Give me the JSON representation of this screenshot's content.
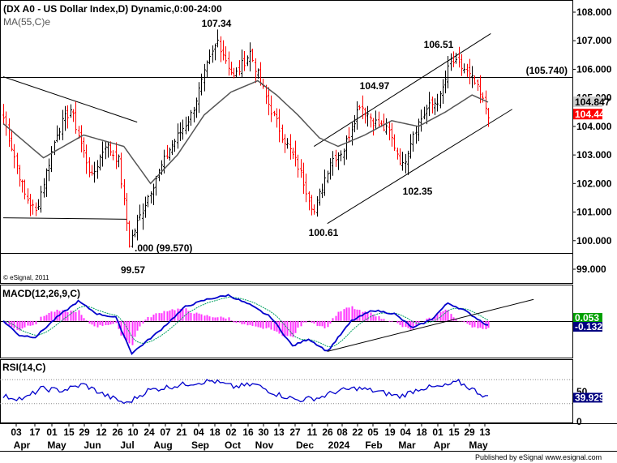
{
  "chart_data": [
    {
      "type": "candlestick",
      "title": "(DX A0 - US Dollar Index,D) Dynamic,0:00-24:00",
      "indicator_label": "MA(55,C)e",
      "ylim": [
        99.0,
        108.0
      ],
      "y_ticks": [
        "108.000",
        "107.000",
        "106.000",
        "105.000",
        "104.000",
        "103.000",
        "102.000",
        "101.000",
        "100.000",
        "99.000"
      ],
      "price_tags": [
        {
          "value": "104.847",
          "color": "#ffffff",
          "bg": "#d0d0d0",
          "text_color": "#000000"
        },
        {
          "value": "104.445",
          "color": "#ff0000",
          "bg": "#ff0000",
          "text_color": "#ffffff"
        }
      ],
      "annotations": [
        {
          "label": "107.34",
          "value": 107.34
        },
        {
          "label": "106.51",
          "value": 106.51
        },
        {
          "label": "104.97",
          "value": 104.97
        },
        {
          "label": "102.35",
          "value": 102.35
        },
        {
          "label": "100.61",
          "value": 100.61
        },
        {
          "label": "99.57",
          "value": 99.57
        },
        {
          "label": "(105.740)",
          "value": 105.74
        },
        {
          "label": ".000 (99.570)",
          "value": 99.57
        }
      ],
      "levels": [
        105.74,
        99.57
      ],
      "copyright": "© eSignal, 2011",
      "anchors": [
        {
          "i": 0,
          "c": 104.3
        },
        {
          "i": 8,
          "c": 101.6
        },
        {
          "i": 12,
          "c": 101.0
        },
        {
          "i": 20,
          "c": 103.8
        },
        {
          "i": 25,
          "c": 104.6
        },
        {
          "i": 33,
          "c": 102.2
        },
        {
          "i": 38,
          "c": 103.4
        },
        {
          "i": 43,
          "c": 102.8
        },
        {
          "i": 47,
          "c": 99.9
        },
        {
          "i": 55,
          "c": 101.8
        },
        {
          "i": 62,
          "c": 103.2
        },
        {
          "i": 70,
          "c": 104.4
        },
        {
          "i": 76,
          "c": 106.1
        },
        {
          "i": 80,
          "c": 107.0
        },
        {
          "i": 86,
          "c": 105.7
        },
        {
          "i": 92,
          "c": 106.6
        },
        {
          "i": 98,
          "c": 105.0
        },
        {
          "i": 104,
          "c": 103.7
        },
        {
          "i": 110,
          "c": 102.6
        },
        {
          "i": 116,
          "c": 101.0
        },
        {
          "i": 122,
          "c": 102.8
        },
        {
          "i": 127,
          "c": 103.2
        },
        {
          "i": 133,
          "c": 104.8
        },
        {
          "i": 138,
          "c": 104.2
        },
        {
          "i": 144,
          "c": 103.8
        },
        {
          "i": 149,
          "c": 102.6
        },
        {
          "i": 153,
          "c": 103.8
        },
        {
          "i": 158,
          "c": 104.6
        },
        {
          "i": 163,
          "c": 105.0
        },
        {
          "i": 167,
          "c": 106.3
        },
        {
          "i": 172,
          "c": 106.0
        },
        {
          "i": 176,
          "c": 105.5
        },
        {
          "i": 181,
          "c": 104.45
        }
      ],
      "ma_anchors": [
        {
          "i": 0,
          "c": 104.1
        },
        {
          "i": 15,
          "c": 102.9
        },
        {
          "i": 30,
          "c": 103.7
        },
        {
          "i": 45,
          "c": 103.3
        },
        {
          "i": 55,
          "c": 102.0
        },
        {
          "i": 65,
          "c": 103.0
        },
        {
          "i": 75,
          "c": 104.4
        },
        {
          "i": 85,
          "c": 105.2
        },
        {
          "i": 95,
          "c": 105.6
        },
        {
          "i": 102,
          "c": 105.1
        },
        {
          "i": 110,
          "c": 104.4
        },
        {
          "i": 118,
          "c": 103.6
        },
        {
          "i": 125,
          "c": 103.3
        },
        {
          "i": 135,
          "c": 103.7
        },
        {
          "i": 145,
          "c": 104.2
        },
        {
          "i": 155,
          "c": 104.0
        },
        {
          "i": 165,
          "c": 104.5
        },
        {
          "i": 175,
          "c": 105.1
        },
        {
          "i": 181,
          "c": 104.85
        }
      ],
      "trendlines": [
        {
          "from": {
            "i": 0,
            "y": 105.74
          },
          "to": {
            "i": 50,
            "y": 104.15
          }
        },
        {
          "from": {
            "i": 0,
            "y": 100.8
          },
          "to": {
            "i": 46,
            "y": 100.75
          }
        },
        {
          "from": {
            "i": 116,
            "y": 103.3
          },
          "to": {
            "i": 182,
            "y": 107.25
          }
        },
        {
          "from": {
            "i": 121,
            "y": 100.6
          },
          "to": {
            "i": 190,
            "y": 104.6
          }
        }
      ]
    },
    {
      "type": "line",
      "title": "MACD(12,26,9,C)",
      "y_ticks": [],
      "price_tags": [
        {
          "value": "0.053",
          "bg": "#00a000",
          "text_color": "#ffffff"
        },
        {
          "value": "-0.132",
          "bg": "#000080",
          "text_color": "#ffffff"
        }
      ],
      "series": [
        {
          "name": "MACD",
          "color": "#0000cc"
        },
        {
          "name": "Signal",
          "color": "#00a060"
        },
        {
          "name": "Histogram",
          "color": "#ff33ff"
        }
      ],
      "macd_anchors": [
        {
          "i": 0,
          "c": 0.0
        },
        {
          "i": 6,
          "c": -0.4
        },
        {
          "i": 12,
          "c": -0.45
        },
        {
          "i": 20,
          "c": 0.1
        },
        {
          "i": 28,
          "c": 0.55
        },
        {
          "i": 35,
          "c": 0.2
        },
        {
          "i": 42,
          "c": 0.1
        },
        {
          "i": 48,
          "c": -0.9
        },
        {
          "i": 58,
          "c": -0.3
        },
        {
          "i": 68,
          "c": 0.4
        },
        {
          "i": 76,
          "c": 0.6
        },
        {
          "i": 84,
          "c": 0.72
        },
        {
          "i": 92,
          "c": 0.45
        },
        {
          "i": 100,
          "c": 0.1
        },
        {
          "i": 108,
          "c": -0.7
        },
        {
          "i": 114,
          "c": -0.5
        },
        {
          "i": 121,
          "c": -0.85
        },
        {
          "i": 130,
          "c": 0.0
        },
        {
          "i": 138,
          "c": 0.3
        },
        {
          "i": 146,
          "c": 0.2
        },
        {
          "i": 153,
          "c": -0.2
        },
        {
          "i": 160,
          "c": 0.05
        },
        {
          "i": 166,
          "c": 0.5
        },
        {
          "i": 172,
          "c": 0.3
        },
        {
          "i": 181,
          "c": -0.13
        }
      ],
      "trendline": {
        "from": {
          "i": 121,
          "y": -0.85
        },
        "to": {
          "i": 198,
          "y": 0.6
        }
      },
      "ylim": [
        -1.0,
        0.9
      ]
    },
    {
      "type": "line",
      "title": "RSI(14,C)",
      "y_ticks": [
        "50",
        "0"
      ],
      "ylim": [
        0,
        100
      ],
      "levels": [
        70,
        30
      ],
      "price_tags": [
        {
          "value": "39.929",
          "bg": "#000080",
          "text_color": "#ffffff"
        }
      ],
      "series": [
        {
          "name": "RSI",
          "color": "#0000cc"
        }
      ],
      "rsi_anchors": [
        {
          "i": 0,
          "c": 42
        },
        {
          "i": 8,
          "c": 38
        },
        {
          "i": 14,
          "c": 55
        },
        {
          "i": 22,
          "c": 52
        },
        {
          "i": 30,
          "c": 62
        },
        {
          "i": 38,
          "c": 44
        },
        {
          "i": 46,
          "c": 30
        },
        {
          "i": 54,
          "c": 52
        },
        {
          "i": 62,
          "c": 58
        },
        {
          "i": 70,
          "c": 64
        },
        {
          "i": 78,
          "c": 68
        },
        {
          "i": 86,
          "c": 58
        },
        {
          "i": 94,
          "c": 62
        },
        {
          "i": 102,
          "c": 46
        },
        {
          "i": 110,
          "c": 36
        },
        {
          "i": 118,
          "c": 40
        },
        {
          "i": 124,
          "c": 50
        },
        {
          "i": 132,
          "c": 56
        },
        {
          "i": 140,
          "c": 50
        },
        {
          "i": 148,
          "c": 42
        },
        {
          "i": 156,
          "c": 56
        },
        {
          "i": 164,
          "c": 58
        },
        {
          "i": 170,
          "c": 66
        },
        {
          "i": 176,
          "c": 52
        },
        {
          "i": 181,
          "c": 40
        }
      ]
    }
  ],
  "x_axis": {
    "day_labels": [
      "03",
      "17",
      "01",
      "15",
      "29",
      "12",
      "26",
      "10",
      "24",
      "07",
      "21",
      "04",
      "18",
      "02",
      "16",
      "30",
      "13",
      "27",
      "11",
      "26",
      "08",
      "22",
      "05",
      "19",
      "04",
      "18",
      "01",
      "15",
      "29",
      "13"
    ],
    "month_labels": [
      "Apr",
      "May",
      "Jun",
      "Jul",
      "Aug",
      "Sep",
      "Oct",
      "Nov",
      "Dec",
      "2024",
      "Feb",
      "Mar",
      "Apr",
      "May"
    ]
  },
  "footer": "Published by eSignal  www.esignal.com"
}
